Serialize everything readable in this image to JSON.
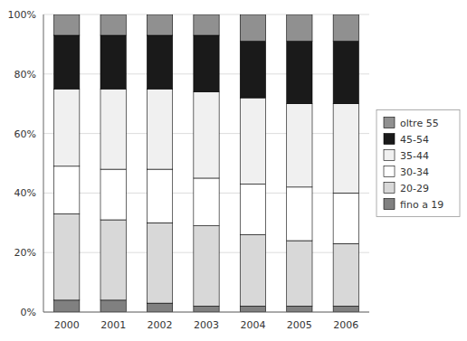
{
  "chart_data": {
    "type": "bar",
    "stacked": true,
    "categories": [
      "2000",
      "2001",
      "2002",
      "2003",
      "2004",
      "2005",
      "2006"
    ],
    "series": [
      {
        "name": "fino a 19",
        "color": "#808080",
        "values": [
          4,
          4,
          3,
          2,
          2,
          2,
          2
        ]
      },
      {
        "name": "20-29",
        "color": "#d8d8d8",
        "values": [
          29,
          27,
          27,
          27,
          24,
          22,
          21
        ]
      },
      {
        "name": "30-34",
        "color": "#ffffff",
        "values": [
          16,
          17,
          18,
          16,
          17,
          18,
          17
        ]
      },
      {
        "name": "35-44",
        "color": "#f0f0f0",
        "values": [
          26,
          27,
          27,
          29,
          29,
          28,
          30
        ]
      },
      {
        "name": "45-54",
        "color": "#1a1a1a",
        "values": [
          18,
          18,
          18,
          19,
          19,
          21,
          21
        ]
      },
      {
        "name": "oltre 55",
        "color": "#909090",
        "values": [
          7,
          7,
          7,
          7,
          9,
          9,
          9
        ]
      }
    ],
    "ylim": [
      0,
      100
    ],
    "yticks": [
      {
        "value": 0,
        "label": "0%"
      },
      {
        "value": 20,
        "label": "20%"
      },
      {
        "value": 40,
        "label": "40%"
      },
      {
        "value": 60,
        "label": "60%"
      },
      {
        "value": 80,
        "label": "80%"
      },
      {
        "value": 100,
        "label": "100%"
      }
    ],
    "grid": true,
    "legend": "right"
  }
}
